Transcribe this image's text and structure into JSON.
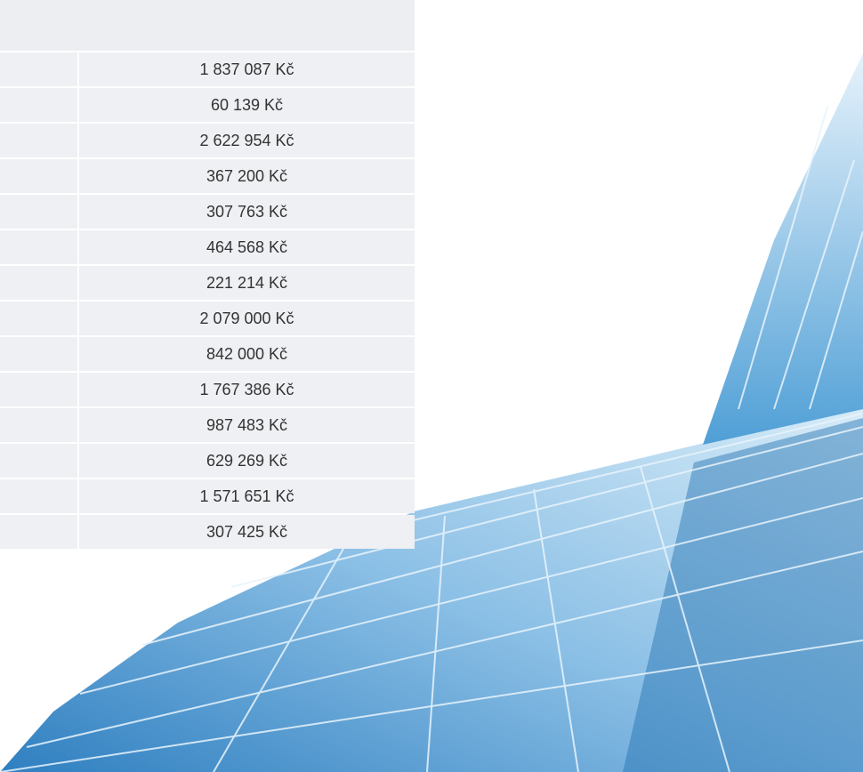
{
  "table": {
    "rows": [
      "1 837 087 Kč",
      "60 139 Kč",
      "2 622 954 Kč",
      "367 200 Kč",
      "307 763 Kč",
      "464 568 Kč",
      "221 214 Kč",
      "2 079 000 Kč",
      "842 000 Kč",
      "1 767 386 Kč",
      "987 483 Kč",
      "629 269 Kč",
      "1 571 651 Kč",
      "307 425 Kč"
    ]
  }
}
